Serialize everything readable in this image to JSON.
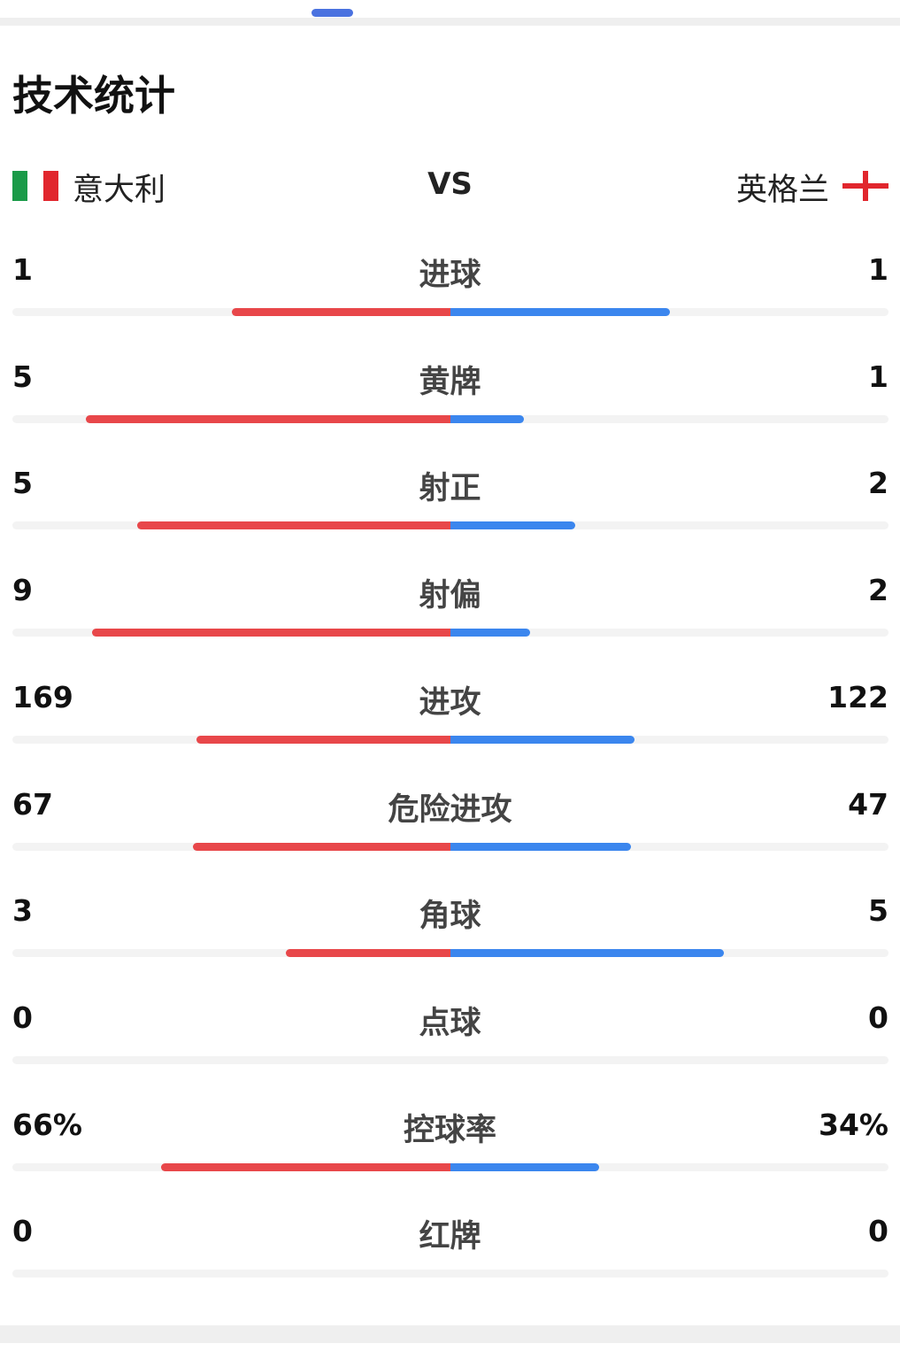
{
  "header": {
    "title": "技术统计"
  },
  "teams": {
    "home": "意大利",
    "vs": "VS",
    "away": "英格兰"
  },
  "stats": [
    {
      "label": "进球",
      "home": 1,
      "away": 1
    },
    {
      "label": "黄牌",
      "home": 5,
      "away": 1
    },
    {
      "label": "射正",
      "home": 5,
      "away": 2
    },
    {
      "label": "射偏",
      "home": 9,
      "away": 2
    },
    {
      "label": "进攻",
      "home": 169,
      "away": 122
    },
    {
      "label": "危险进攻",
      "home": 67,
      "away": 47
    },
    {
      "label": "角球",
      "home": 3,
      "away": 5
    },
    {
      "label": "点球",
      "home": 0,
      "away": 0
    },
    {
      "label": "控球率",
      "home": 66,
      "home_label": "66%",
      "away": 34,
      "away_label": "34%"
    },
    {
      "label": "红牌",
      "home": 0,
      "away": 0
    }
  ]
}
